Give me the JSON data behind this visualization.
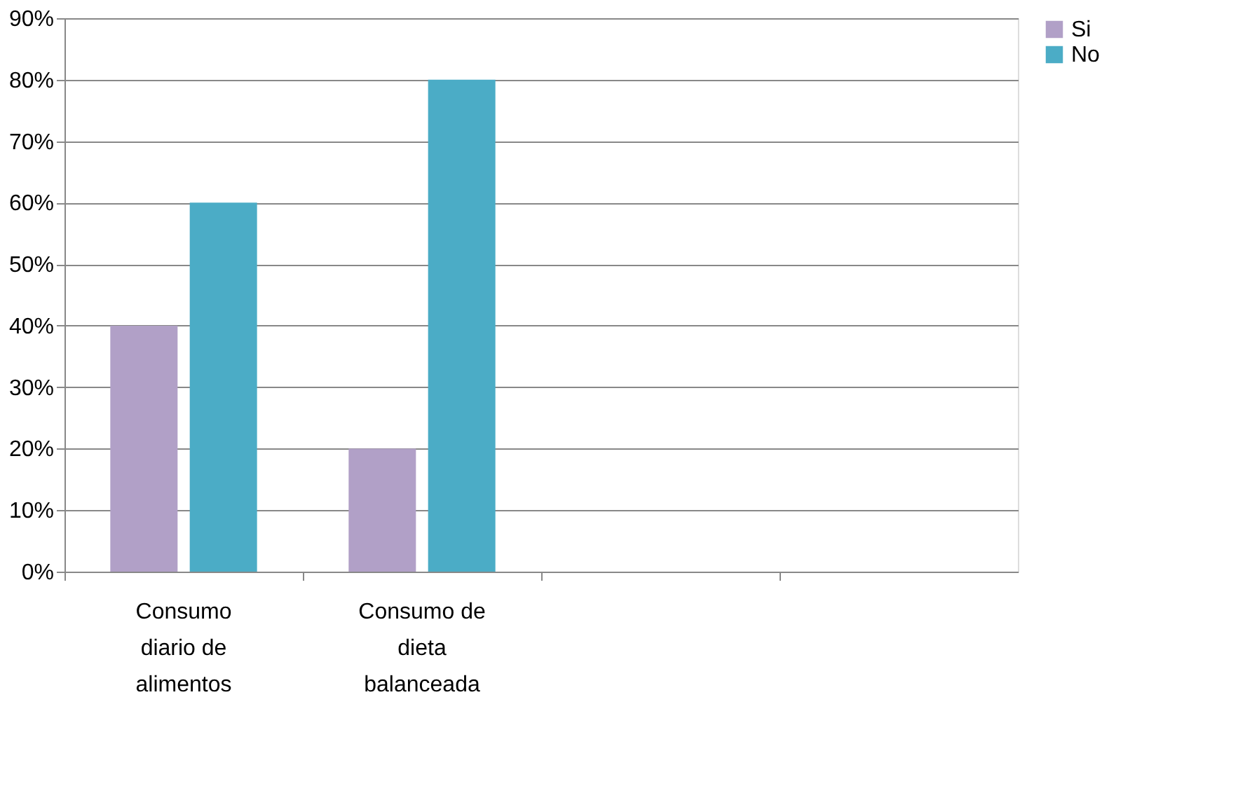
{
  "chart_data": {
    "type": "bar",
    "categories": [
      "Consumo diario de alimentos",
      "Consumo de dieta balanceada",
      null,
      null
    ],
    "series": [
      {
        "name": "Si",
        "color": "#b1a0c7",
        "values": [
          40,
          20,
          null,
          null
        ]
      },
      {
        "name": "No",
        "color": "#4bacc6",
        "values": [
          60,
          80,
          null,
          null
        ]
      }
    ],
    "ylim": [
      0,
      90
    ],
    "yticks": [
      {
        "value": 0,
        "label": "0%"
      },
      {
        "value": 10,
        "label": "10%"
      },
      {
        "value": 20,
        "label": "20%"
      },
      {
        "value": 30,
        "label": "30%"
      },
      {
        "value": 40,
        "label": "40%"
      },
      {
        "value": 50,
        "label": "50%"
      },
      {
        "value": 60,
        "label": "60%"
      },
      {
        "value": 70,
        "label": "70%"
      },
      {
        "value": 80,
        "label": "80%"
      },
      {
        "value": 90,
        "label": "90%"
      }
    ],
    "grid": "y",
    "legend": "right"
  }
}
